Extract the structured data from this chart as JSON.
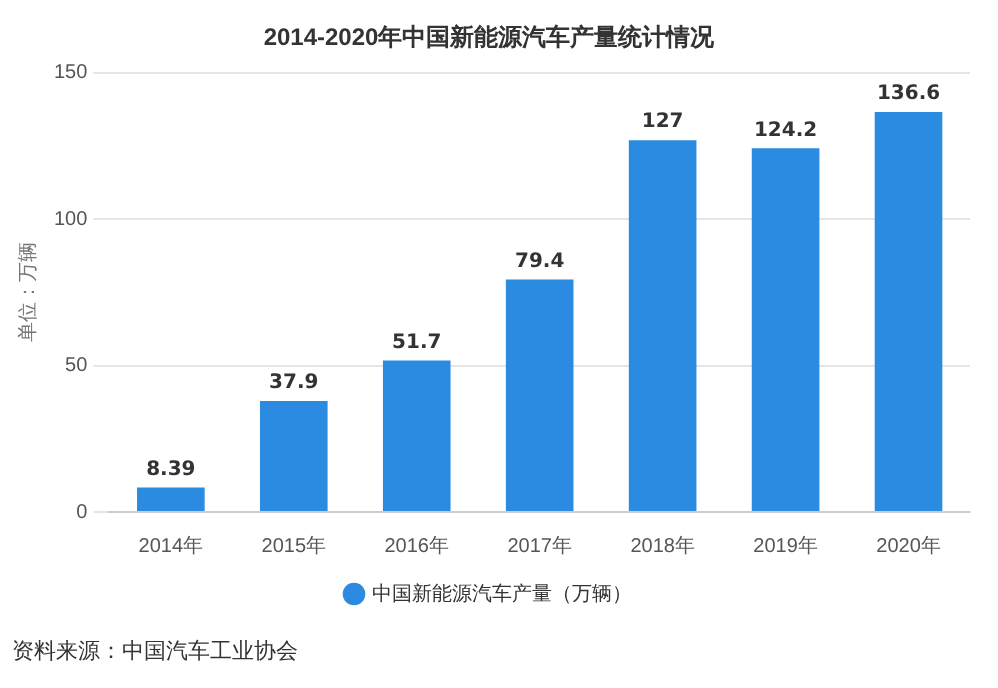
{
  "chart_data": {
    "type": "bar",
    "title": "2014-2020年中国新能源汽车产量统计情况",
    "ylabel": "单位：万辆",
    "categories": [
      "2014年",
      "2015年",
      "2016年",
      "2017年",
      "2018年",
      "2019年",
      "2020年"
    ],
    "series": [
      {
        "name": "中国新能源汽车产量（万辆）",
        "color": "#2b8be0",
        "values": [
          8.39,
          37.9,
          51.7,
          79.4,
          127,
          124.2,
          136.6
        ]
      }
    ],
    "ylim": [
      0,
      150
    ],
    "yticks": [
      0,
      50,
      100,
      150
    ],
    "grid": "y",
    "legend": "bottom",
    "data_labels": true,
    "annotations": [
      "资料来源：中国汽车工业协会"
    ]
  }
}
